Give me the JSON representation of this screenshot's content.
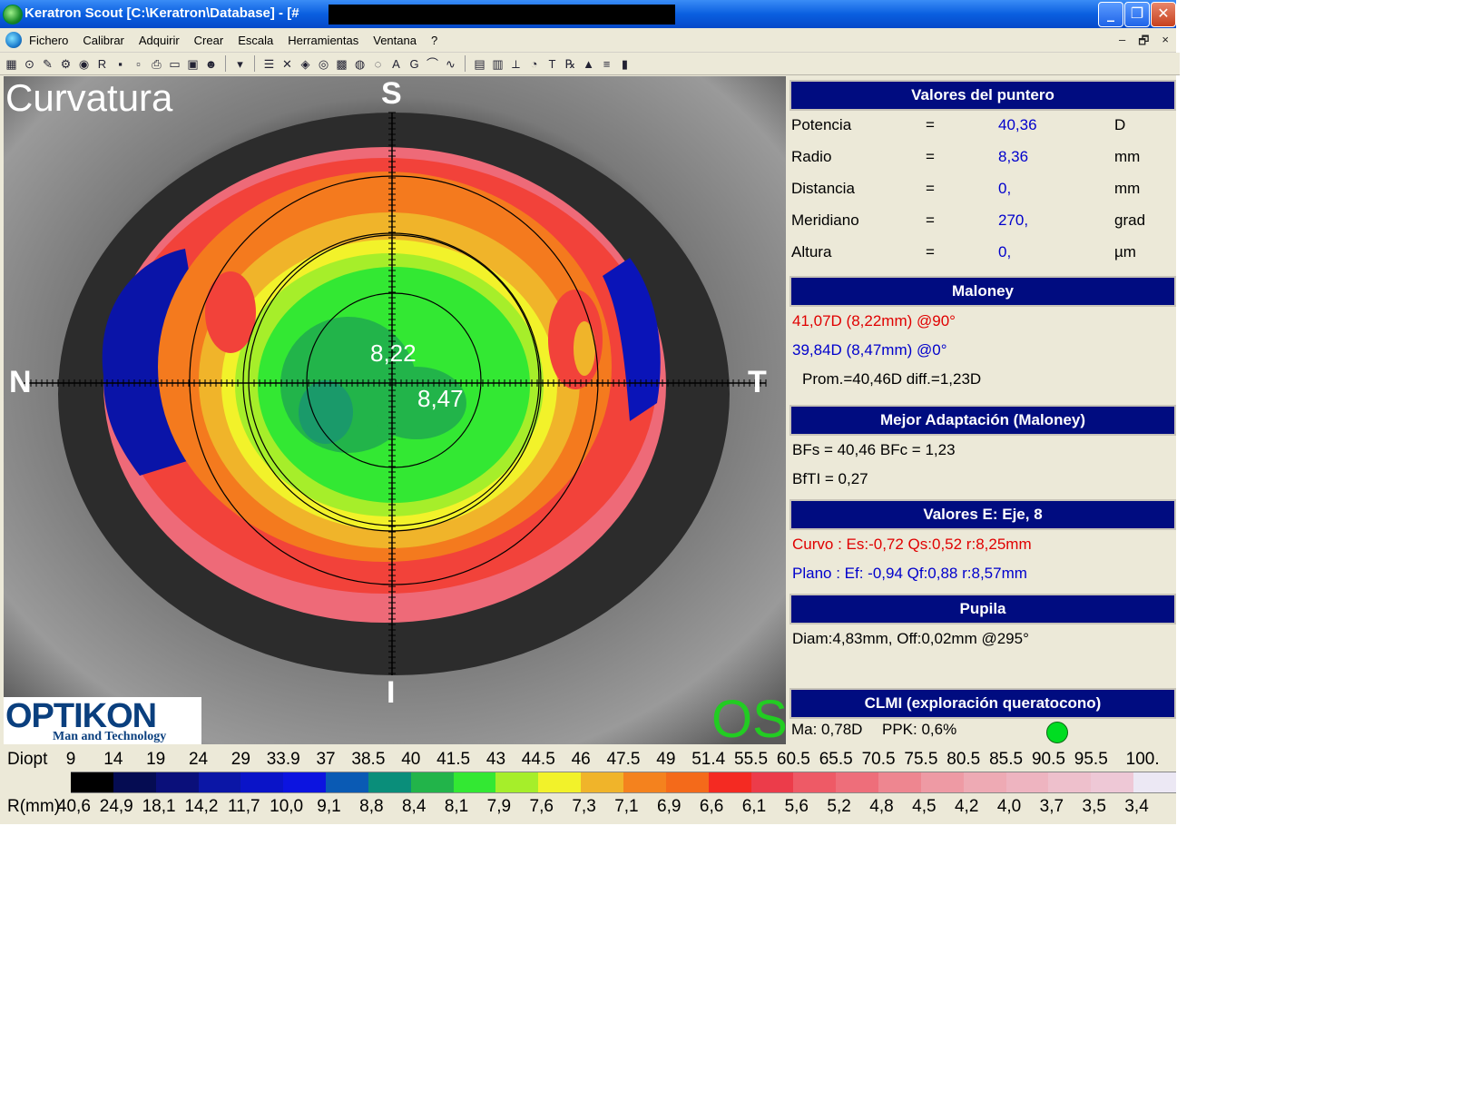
{
  "window": {
    "title": "Keratron Scout [C:\\Keratron\\Database] - [#"
  },
  "menu": {
    "items": [
      "Fichero",
      "Calibrar",
      "Adquirir",
      "Crear",
      "Escala",
      "Herramientas",
      "Ventana",
      "?"
    ],
    "mdi_controls": [
      "–",
      "🗗",
      "×"
    ]
  },
  "toolbar": {
    "icons": [
      "open-icon",
      "camera-icon",
      "pointer-icon",
      "calibrate-icon",
      "globe-icon",
      "rx-tool-icon",
      "save-icon",
      "disk-icon",
      "print-icon",
      "preview-icon",
      "display-icon",
      "patient-icon",
      "dropdown-icon",
      "grid-icon",
      "close-x-icon",
      "layers-icon",
      "eye-icon",
      "mesh-icon",
      "target-icon",
      "circle-icon",
      "a-icon",
      "g-icon",
      "profile-icon",
      "wave-icon",
      "table-icon",
      "chart-icon",
      "ruler-icon",
      "lens-icon",
      "text-icon",
      "rx-icon",
      "color-scale-icon",
      "scale-icon",
      "levels-icon"
    ]
  },
  "map": {
    "title": "Curvatura",
    "dir_s": "S",
    "dir_n": "N",
    "dir_t": "T",
    "dir_i": "I",
    "k_steep": "8,22",
    "k_flat": "8,47",
    "eye": "OS",
    "logo_brand": "OPTIKON",
    "logo_tag": "Man and Technology"
  },
  "panel": {
    "pointer": {
      "header": "Valores del puntero",
      "rows": [
        {
          "label": "Potencia",
          "eq": "=",
          "value": "40,36",
          "unit": "D"
        },
        {
          "label": "Radio",
          "eq": "=",
          "value": "8,36",
          "unit": "mm"
        },
        {
          "label": "Distancia",
          "eq": "=",
          "value": "0,",
          "unit": "mm"
        },
        {
          "label": "Meridiano",
          "eq": "=",
          "value": "270,",
          "unit": "grad"
        },
        {
          "label": "Altura",
          "eq": "=",
          "value": "0,",
          "unit": "µm"
        }
      ]
    },
    "maloney": {
      "header": "Maloney",
      "steep": "41,07D (8,22mm) @90°",
      "flat": "39,84D (8,47mm) @0°",
      "avg": "Prom.=40,46D  diff.=1,23D"
    },
    "bestfit": {
      "header": "Mejor Adaptación (Maloney)",
      "line1": "BFs = 40,46 BFc = 1,23",
      "line2": "BfTI = 0,27"
    },
    "evalues": {
      "header": "Valores E: Eje, 8",
      "curvo": "Curvo :  Es:-0,72 Qs:0,52 r:8,25mm",
      "plano": "Plano :  Ef: -0,94 Qf:0,88 r:8,57mm"
    },
    "pupil": {
      "header": "Pupila",
      "line": "Diam:4,83mm, Off:0,02mm @295°"
    },
    "clmi": {
      "header": "CLMI (exploración queratocono)",
      "ma": "Ma: 0,78D",
      "ppk": "PPK: 0,6%"
    }
  },
  "scale": {
    "diopt_label": "Diopt",
    "r_label": "R(mm)",
    "diopt": [
      "9",
      "14",
      "19",
      "24",
      "29",
      "33.9",
      "37",
      "38.5",
      "40",
      "41.5",
      "43",
      "44.5",
      "46",
      "47.5",
      "49",
      "51.4",
      "55.5",
      "60.5",
      "65.5",
      "70.5",
      "75.5",
      "80.5",
      "85.5",
      "90.5",
      "95.5",
      "100."
    ],
    "radius": [
      "40,6",
      "24,9",
      "18,1",
      "14,2",
      "11,7",
      "10,0",
      "9,1",
      "8,8",
      "8,4",
      "8,1",
      "7,9",
      "7,6",
      "7,3",
      "7,1",
      "6,9",
      "6,6",
      "6,1",
      "5,6",
      "5,2",
      "4,8",
      "4,5",
      "4,2",
      "4,0",
      "3,7",
      "3,5",
      "3,4"
    ],
    "colors": [
      "#000000",
      "#050c52",
      "#0a0f7a",
      "#0b16a6",
      "#0a14c8",
      "#0c14e0",
      "#0a5ab4",
      "#0a8e7a",
      "#22b44a",
      "#33e833",
      "#a6ee2a",
      "#f2f22a",
      "#f0b42a",
      "#f4821e",
      "#f46a1a",
      "#f42a22",
      "#ec3c4a",
      "#ee5a66",
      "#ee6e7a",
      "#ee8690",
      "#ee9aa4",
      "#eeaab4",
      "#eeb4c0",
      "#eec0cc",
      "#eec8d6",
      "#ece8f4"
    ]
  }
}
